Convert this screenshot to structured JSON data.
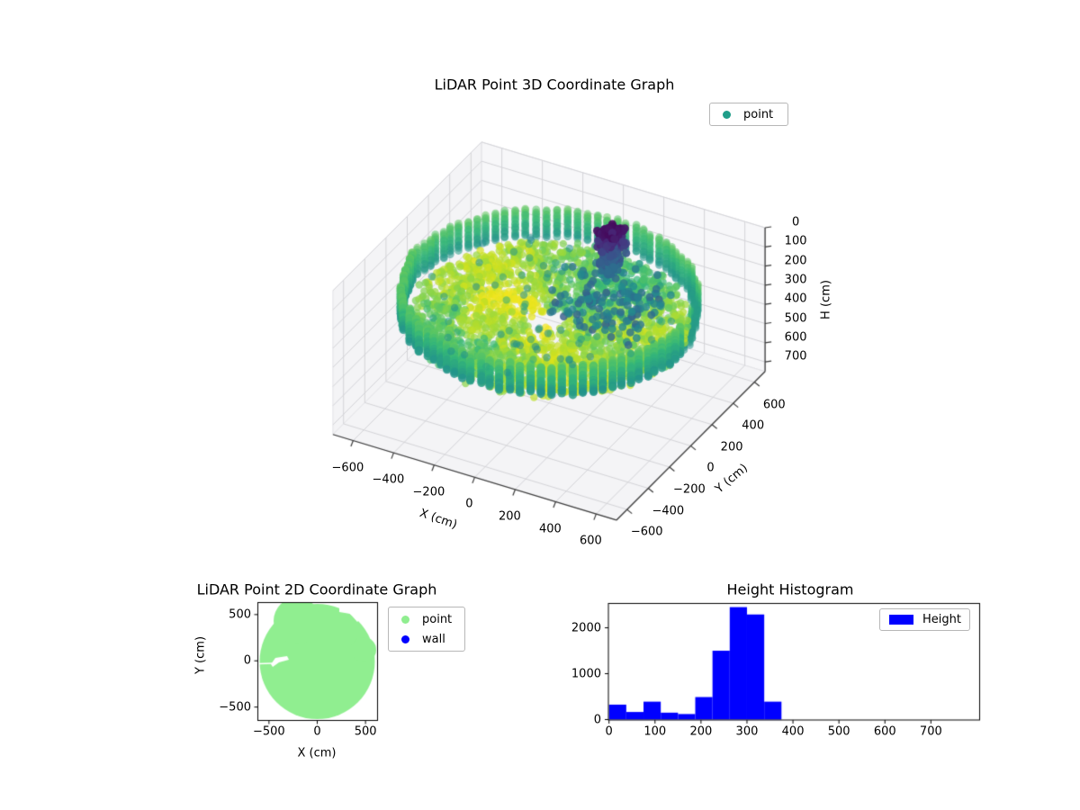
{
  "chart_data": [
    {
      "id": "lidar3d",
      "type": "scatter",
      "projection": "3d",
      "title": "LiDAR Point 3D Coordinate Graph",
      "xlabel": "X (cm)",
      "ylabel": "Y (cm)",
      "zlabel": "H (cm)",
      "xticks": [
        -600,
        -400,
        -200,
        0,
        200,
        400,
        600
      ],
      "yticks": [
        -600,
        -400,
        -200,
        0,
        200,
        400,
        600
      ],
      "zticks": [
        0,
        100,
        200,
        300,
        400,
        500,
        600,
        700
      ],
      "xlim": [
        -700,
        700
      ],
      "ylim": [
        -700,
        700
      ],
      "zlim": [
        0,
        750
      ],
      "zaxis_inverted": true,
      "colormap": "viridis",
      "legend": {
        "position": "upper right",
        "entries": [
          {
            "label": "point",
            "color": "#1f9e89",
            "marker": "circle"
          }
        ]
      },
      "point_cloud": {
        "description": "circular room scan colored by height (viridis)",
        "wall_ring": {
          "radius_cm": 645,
          "columns": 88,
          "h_range_cm": [
            150,
            290
          ],
          "color_top": "#4ac16d",
          "color_bottom": "#1f9e89"
        },
        "floor_disc": {
          "radius_cm": 620,
          "points": 2100,
          "h_range_cm": [
            280,
            370
          ],
          "colors": [
            "#35b779",
            "#7ad151",
            "#d2e21b"
          ]
        },
        "dense_cluster": {
          "center_xy_cm": [
            130,
            330
          ],
          "h_range_cm": [
            0,
            200
          ],
          "points": 380,
          "colors": [
            "#440154",
            "#3b528b"
          ]
        },
        "seed": 42
      }
    },
    {
      "id": "lidar2d",
      "type": "scatter",
      "title": "LiDAR Point 2D Coordinate Graph",
      "xlabel": "X (cm)",
      "ylabel": "Y (cm)",
      "xticks": [
        -500,
        0,
        500
      ],
      "yticks": [
        500,
        0,
        -500
      ],
      "xlim": [
        -620,
        620
      ],
      "ylim": [
        -640,
        635
      ],
      "legend": {
        "position": "upper right outside",
        "entries": [
          {
            "label": "point",
            "color": "#90ee90",
            "marker": "circle"
          },
          {
            "label": "wall",
            "color": "#0000ff",
            "marker": "circle"
          }
        ]
      },
      "blob": {
        "center_cm": [
          0,
          -5
        ],
        "radius_cm": 600,
        "color": "#90ee90"
      }
    },
    {
      "id": "height_hist",
      "type": "bar",
      "title": "Height Histogram",
      "legend": {
        "position": "upper right",
        "entries": [
          {
            "label": "Height",
            "color": "#0000ff",
            "marker": "patch"
          }
        ]
      },
      "bar_color": "#0000ff",
      "bin_start": 0,
      "bin_width": 37.5,
      "values": [
        325,
        165,
        390,
        150,
        120,
        490,
        1500,
        2450,
        2290,
        390
      ],
      "xticks": [
        0,
        100,
        200,
        300,
        400,
        500,
        600,
        700
      ],
      "yticks": [
        0,
        1000,
        2000
      ],
      "xlim": [
        0,
        805
      ],
      "ylim": [
        0,
        2540
      ],
      "grid": false
    }
  ]
}
